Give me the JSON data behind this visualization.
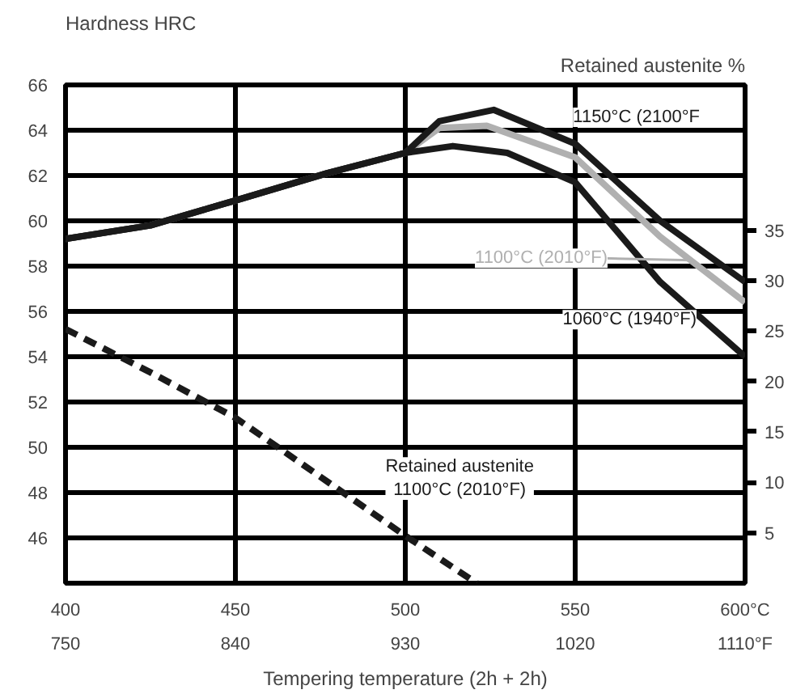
{
  "chart_data": {
    "type": "line",
    "xlabel": "Tempering temperature (2h + 2h)",
    "ylabel": "Hardness HRC",
    "y2label": "Retained austenite %",
    "xlim": [
      400,
      600
    ],
    "xticks": [
      400,
      450,
      500,
      550,
      {
        "value": 600,
        "label": "600°C"
      }
    ],
    "x2lim": [
      750,
      1110
    ],
    "x2ticks": [
      750,
      840,
      930,
      1020,
      {
        "value": 1110,
        "label": "1110°F"
      }
    ],
    "ylim": [
      44,
      66
    ],
    "yticks": [
      46,
      48,
      50,
      52,
      54,
      56,
      58,
      60,
      62,
      64,
      66
    ],
    "y2lim": [
      0,
      49.4
    ],
    "y2ticks": [
      5,
      10,
      15,
      20,
      25,
      30,
      35
    ],
    "grid": true,
    "line_style": "solid",
    "marker": "none",
    "series": [
      {
        "name": "1100°C (2010°F)",
        "color": "#b0b0b0",
        "x": [
          400,
          425,
          450,
          477,
          500,
          510,
          524,
          550,
          575,
          600
        ],
        "values": [
          59.2,
          59.8,
          60.9,
          62.1,
          63.0,
          64.1,
          64.2,
          62.8,
          59.3,
          56.4
        ]
      },
      {
        "name": "1060°C (1940°F)",
        "color": "#1a1a1a",
        "x": [
          400,
          425,
          450,
          477,
          500,
          514,
          530,
          550,
          575,
          600
        ],
        "values": [
          59.2,
          59.8,
          60.9,
          62.1,
          63.0,
          63.3,
          63.0,
          61.7,
          57.3,
          54.0
        ]
      },
      {
        "name": "1150°C (2100°F",
        "color": "#1a1a1a",
        "x": [
          400,
          425,
          450,
          477,
          500,
          510,
          526,
          550,
          575,
          600
        ],
        "values": [
          59.2,
          59.8,
          60.9,
          62.1,
          63.0,
          64.4,
          64.9,
          63.4,
          60.0,
          57.3
        ]
      },
      {
        "name": "Retained austenite\n1100°C (2010°F)",
        "color": "#1a1a1a",
        "axis": "y2",
        "line_style": "dashed",
        "x": [
          400,
          425,
          450,
          500,
          521
        ],
        "values": [
          25.2,
          20.9,
          16.4,
          4.7,
          0
        ]
      }
    ]
  }
}
